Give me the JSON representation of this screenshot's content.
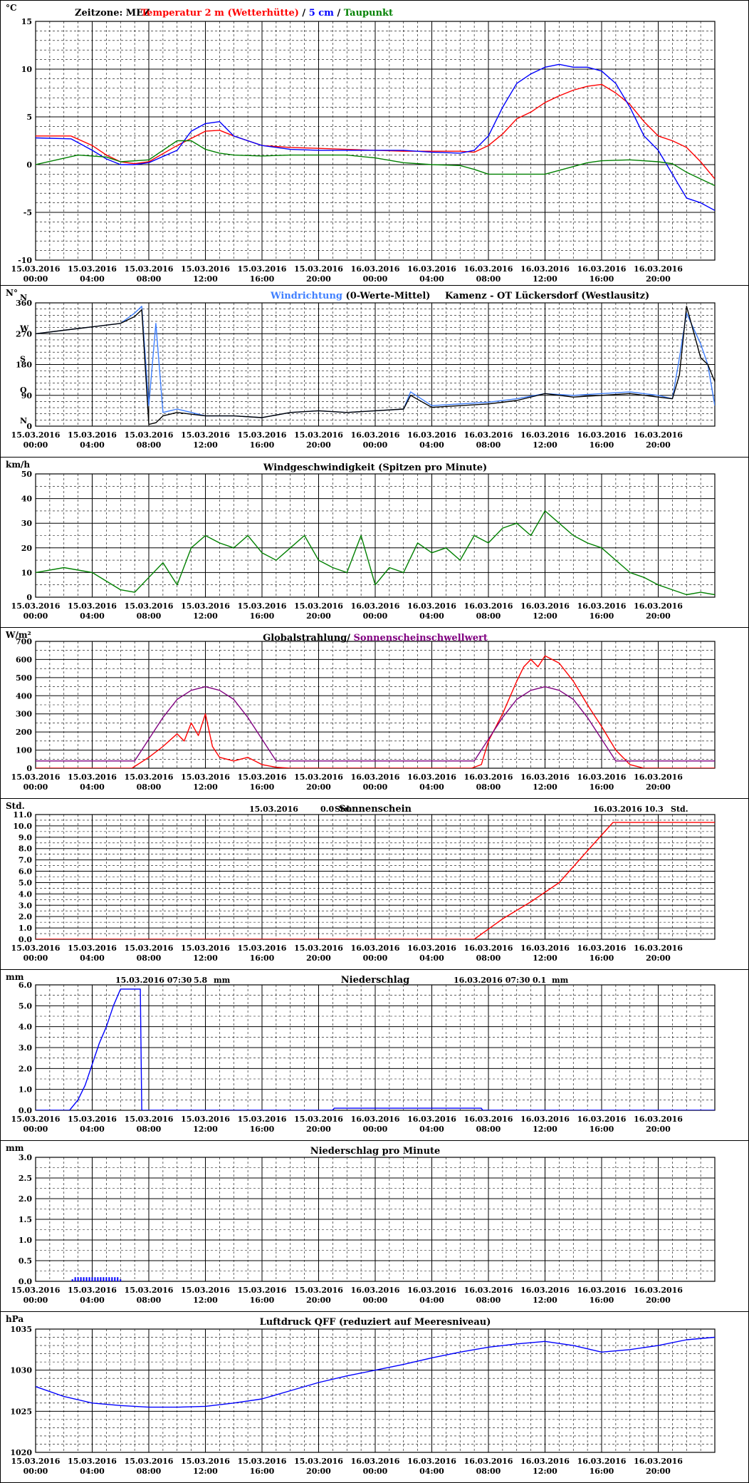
{
  "x_ticks": {
    "dates": [
      "15.03.2016",
      "15.03.2016",
      "15.03.2016",
      "15.03.2016",
      "15.03.2016",
      "15.03.2016",
      "16.03.2016",
      "16.03.2016",
      "16.03.2016",
      "16.03.2016",
      "16.03.2016",
      "16.03.2016"
    ],
    "times": [
      "00:00",
      "04:00",
      "08:00",
      "12:00",
      "16:00",
      "20:00",
      "00:00",
      "04:00",
      "08:00",
      "12:00",
      "16:00",
      "20:00"
    ]
  },
  "colors": {
    "red": "#ff0000",
    "blue": "#0000ff",
    "green": "#008000",
    "black": "#000000",
    "purple": "#800080",
    "lightblue": "#3f7fff",
    "grid": "#000000"
  },
  "chart_data": [
    {
      "type": "line",
      "id": "temperature",
      "unit": "°C",
      "header": "Zeitzone: MEZ",
      "title_parts": [
        {
          "text": "Temperatur 2 m (Wetterhütte)",
          "color": "red"
        },
        {
          "text": " / ",
          "color": "black"
        },
        {
          "text": "5 cm",
          "color": "blue"
        },
        {
          "text": " / ",
          "color": "black"
        },
        {
          "text": "Taupunkt",
          "color": "green"
        }
      ],
      "ylim": [
        -10,
        15
      ],
      "yticks": [
        -10,
        -5,
        0,
        5,
        10,
        15
      ],
      "ytick_labels": [
        "-10",
        "-5",
        "0",
        "5",
        "10",
        "15"
      ],
      "x_range_hours": [
        0,
        48
      ],
      "series": [
        {
          "name": "Temperatur 2 m (Wetterhütte)",
          "color": "red",
          "x": [
            0,
            2.5,
            4,
            5,
            6,
            7,
            8,
            10,
            12,
            13,
            14,
            16,
            18,
            20,
            22,
            24,
            26,
            28,
            30,
            31,
            32,
            33,
            34,
            35,
            36,
            37,
            38,
            39,
            40,
            41,
            42,
            43,
            44,
            45,
            46,
            47,
            48
          ],
          "y": [
            3,
            3,
            2,
            1,
            0.3,
            0.1,
            0.3,
            2,
            3.5,
            3.6,
            3,
            2,
            1.8,
            1.7,
            1.6,
            1.5,
            1.4,
            1.4,
            1.4,
            1.3,
            2,
            3.2,
            4.8,
            5.5,
            6.5,
            7.2,
            7.8,
            8.2,
            8.4,
            7.5,
            6.3,
            4.5,
            3,
            2.5,
            1.8,
            0.3,
            -1.5
          ]
        },
        {
          "name": "5 cm",
          "color": "blue",
          "x": [
            0,
            2.5,
            4,
            5,
            6,
            7,
            8,
            10,
            11,
            12,
            13,
            14,
            15,
            16,
            18,
            20,
            22,
            24,
            26,
            28,
            30,
            31,
            32,
            33,
            34,
            35,
            36,
            37,
            38,
            39,
            40,
            41,
            42,
            43,
            44,
            45,
            46,
            47,
            48
          ],
          "y": [
            2.8,
            2.7,
            1.5,
            0.6,
            0,
            0,
            0.2,
            1.5,
            3.5,
            4.3,
            4.5,
            3,
            2.5,
            2,
            1.6,
            1.5,
            1.5,
            1.5,
            1.5,
            1.3,
            1.2,
            1.5,
            3,
            6,
            8.5,
            9.5,
            10.2,
            10.5,
            10.2,
            10.2,
            9.8,
            8.5,
            6,
            3,
            1.5,
            -1,
            -3.5,
            -4,
            -4.8
          ]
        },
        {
          "name": "Taupunkt",
          "color": "green",
          "x": [
            0,
            3,
            5,
            6,
            8,
            10,
            11,
            12,
            13,
            14,
            16,
            18,
            20,
            22,
            24,
            26,
            28,
            30,
            31,
            32,
            34,
            36,
            38,
            39,
            40,
            42,
            44,
            45,
            46,
            47,
            48
          ],
          "y": [
            0,
            1,
            0.8,
            0.3,
            0.5,
            2.5,
            2.5,
            1.6,
            1.2,
            1,
            0.9,
            1,
            1,
            1,
            0.7,
            0.2,
            0,
            -0.1,
            -0.5,
            -1,
            -1,
            -1,
            -0.2,
            0.2,
            0.4,
            0.5,
            0.3,
            0.1,
            -0.8,
            -1.5,
            -2.2
          ]
        }
      ]
    },
    {
      "type": "line",
      "id": "winddir",
      "unit": "N°",
      "title_parts": [
        {
          "text": "Windrichtung",
          "color": "lightblue"
        },
        {
          "text": " (0-Werte-Mittel)",
          "color": "black"
        }
      ],
      "title_right": "Kamenz - OT Lückersdorf (Westlausitz)",
      "ylim": [
        0,
        360
      ],
      "yticks": [
        0,
        90,
        180,
        270,
        360
      ],
      "ytick_labels": [
        "0",
        "90",
        "180",
        "270",
        "360"
      ],
      "compass_labels": [
        "N",
        "O",
        "S",
        "W",
        "N"
      ],
      "series": [
        {
          "name": "Windrichtung",
          "color": "lightblue",
          "x": [
            0,
            3,
            6,
            7,
            7.5,
            8,
            8.5,
            9,
            10,
            12,
            14,
            16,
            18,
            20,
            22,
            24,
            26,
            26.5,
            28,
            30,
            32,
            34,
            36,
            38,
            40,
            42,
            44,
            45,
            45.5,
            46,
            47,
            47.5,
            48
          ],
          "y": [
            270,
            285,
            300,
            330,
            350,
            60,
            300,
            40,
            50,
            30,
            30,
            25,
            40,
            45,
            40,
            45,
            50,
            100,
            60,
            65,
            70,
            80,
            95,
            90,
            95,
            100,
            90,
            80,
            200,
            330,
            240,
            180,
            60
          ]
        },
        {
          "name": "0-Werte-Mittel",
          "color": "black",
          "x": [
            0,
            3,
            6,
            7,
            7.5,
            8,
            8.5,
            9,
            10,
            12,
            14,
            16,
            18,
            20,
            22,
            24,
            26,
            26.5,
            28,
            30,
            32,
            34,
            36,
            38,
            40,
            42,
            44,
            45,
            45.5,
            46,
            47,
            47.5,
            48
          ],
          "y": [
            270,
            285,
            300,
            320,
            340,
            5,
            10,
            30,
            40,
            30,
            30,
            25,
            40,
            45,
            40,
            45,
            50,
            90,
            55,
            60,
            65,
            75,
            95,
            85,
            90,
            95,
            85,
            80,
            150,
            350,
            200,
            180,
            130
          ]
        }
      ]
    },
    {
      "type": "line",
      "id": "windspeed",
      "unit": "km/h",
      "title_parts": [
        {
          "text": "Windgeschwindigkeit (Spitzen pro Minute)",
          "color": "black"
        }
      ],
      "ylim": [
        0,
        50
      ],
      "yticks": [
        0,
        10,
        20,
        30,
        40,
        50
      ],
      "ytick_labels": [
        "0",
        "10",
        "20",
        "30",
        "40",
        "50"
      ],
      "series": [
        {
          "name": "Windgeschwindigkeit",
          "color": "green",
          "x": [
            0,
            2,
            4,
            6,
            7,
            8,
            9,
            10,
            11,
            12,
            13,
            14,
            15,
            16,
            17,
            18,
            19,
            20,
            21,
            22,
            23,
            24,
            25,
            26,
            27,
            28,
            29,
            30,
            31,
            32,
            33,
            34,
            35,
            36,
            37,
            38,
            39,
            40,
            41,
            42,
            43,
            44,
            45,
            46,
            47,
            48
          ],
          "y": [
            10,
            12,
            10,
            3,
            2,
            8,
            14,
            5,
            20,
            25,
            22,
            20,
            25,
            18,
            15,
            20,
            25,
            15,
            12,
            10,
            25,
            5,
            12,
            10,
            22,
            18,
            20,
            15,
            25,
            22,
            28,
            30,
            25,
            35,
            30,
            25,
            22,
            20,
            15,
            10,
            8,
            5,
            3,
            1,
            2,
            1
          ]
        }
      ]
    },
    {
      "type": "line",
      "id": "radiation",
      "unit": "W/m²",
      "title_parts": [
        {
          "text": "Globalstrahlung/",
          "color": "black"
        },
        {
          "text": " Sonnenscheinschwellwert",
          "color": "purple"
        }
      ],
      "ylim": [
        0,
        700
      ],
      "yticks": [
        0,
        100,
        200,
        300,
        400,
        500,
        600,
        700
      ],
      "ytick_labels": [
        "0",
        "100",
        "200",
        "300",
        "400",
        "500",
        "600",
        "700"
      ],
      "series": [
        {
          "name": "Globalstrahlung",
          "color": "red",
          "x": [
            0,
            6.8,
            7,
            8,
            9,
            10,
            10.5,
            11,
            11.5,
            12,
            12.5,
            13,
            14,
            15,
            16,
            17,
            18,
            24,
            30.8,
            31.5,
            32,
            33,
            34,
            34.5,
            35,
            35.5,
            36,
            37,
            38,
            39,
            40,
            41,
            42,
            43,
            48
          ],
          "y": [
            0,
            0,
            10,
            60,
            120,
            190,
            150,
            250,
            180,
            300,
            120,
            60,
            40,
            60,
            20,
            5,
            0,
            0,
            0,
            20,
            150,
            300,
            480,
            560,
            600,
            560,
            620,
            580,
            480,
            350,
            230,
            100,
            20,
            0,
            0
          ]
        },
        {
          "name": "Sonnenscheinschwellwert",
          "color": "purple",
          "x": [
            0,
            7,
            8,
            9,
            10,
            11,
            12,
            13,
            14,
            15,
            16,
            17,
            31,
            32,
            33,
            34,
            35,
            36,
            37,
            38,
            39,
            40,
            41,
            48
          ],
          "y": [
            40,
            40,
            160,
            280,
            380,
            430,
            450,
            430,
            380,
            280,
            160,
            40,
            40,
            160,
            280,
            380,
            430,
            450,
            430,
            380,
            280,
            160,
            40,
            40
          ]
        }
      ]
    },
    {
      "type": "line",
      "id": "sunshine",
      "unit": "Std.",
      "title_parts": [
        {
          "text": "Sonnenschein",
          "color": "black"
        }
      ],
      "annotations": [
        {
          "date": "15.03.2016",
          "value": "0.0",
          "unit": "Std."
        },
        {
          "date": "16.03.2016",
          "value": "10.3",
          "unit": "Std."
        }
      ],
      "ylim": [
        0,
        11
      ],
      "yticks": [
        0,
        1,
        2,
        3,
        4,
        5,
        6,
        7,
        8,
        9,
        10,
        11
      ],
      "ytick_labels": [
        "0.0",
        "1.0",
        "2.0",
        "3.0",
        "4.0",
        "5.0",
        "6.0",
        "7.0",
        "8.0",
        "9.0",
        "10.0",
        "11.0"
      ],
      "series": [
        {
          "name": "Sonnenschein",
          "color": "red",
          "x": [
            0,
            31,
            33,
            35,
            37,
            39,
            40.8,
            48
          ],
          "y": [
            0,
            0,
            1.8,
            3.3,
            5,
            7.8,
            10.3,
            10.3
          ]
        }
      ]
    },
    {
      "type": "line",
      "id": "precip",
      "unit": "mm",
      "title_parts": [
        {
          "text": "Niederschlag",
          "color": "black"
        }
      ],
      "annotations": [
        {
          "date": "15.03.2016 07:30",
          "value": "5.8",
          "unit": "mm"
        },
        {
          "date": "16.03.2016 07:30",
          "value": "0.1",
          "unit": "mm"
        }
      ],
      "ylim": [
        0,
        6
      ],
      "yticks": [
        0,
        1,
        2,
        3,
        4,
        5,
        6
      ],
      "ytick_labels": [
        "0.0",
        "1.0",
        "2.0",
        "3.0",
        "4.0",
        "5.0",
        "6.0"
      ],
      "series": [
        {
          "name": "Niederschlag",
          "color": "blue",
          "x": [
            0,
            2.4,
            3,
            3.5,
            4,
            4.5,
            5,
            5.5,
            6,
            7.3,
            7.4,
            7.5,
            21,
            21.1,
            31.5,
            31.6,
            48
          ],
          "y": [
            0,
            0,
            0.5,
            1.2,
            2.2,
            3.2,
            4,
            5,
            5.8,
            5.8,
            5.8,
            0,
            0,
            0.1,
            0.1,
            0,
            0
          ]
        }
      ]
    },
    {
      "type": "bar",
      "id": "precip_min",
      "unit": "mm",
      "title_parts": [
        {
          "text": "Niederschlag pro Minute",
          "color": "black"
        }
      ],
      "ylim": [
        0,
        3
      ],
      "yticks": [
        0,
        0.5,
        1,
        1.5,
        2,
        2.5,
        3
      ],
      "ytick_labels": [
        "0.0",
        "0.5",
        "1.0",
        "1.5",
        "2.0",
        "2.5",
        "3.0"
      ],
      "series": [
        {
          "name": "Niederschlag pro Minute",
          "color": "blue",
          "x": [
            2.6,
            2.8,
            3,
            3.2,
            3.4,
            3.6,
            3.8,
            4,
            4.2,
            4.4,
            4.6,
            4.8,
            5,
            5.2,
            5.4,
            5.6,
            5.8,
            6
          ],
          "y": [
            0.05,
            0.1,
            0.1,
            0.1,
            0.1,
            0.1,
            0.1,
            0.1,
            0.1,
            0.1,
            0.1,
            0.1,
            0.1,
            0.1,
            0.1,
            0.1,
            0.1,
            0.05
          ]
        }
      ]
    },
    {
      "type": "line",
      "id": "pressure",
      "unit": "hPa",
      "title_parts": [
        {
          "text": "Luftdruck QFF (reduziert auf Meeresniveau)",
          "color": "black"
        }
      ],
      "ylim": [
        1020,
        1035
      ],
      "yticks": [
        1020,
        1025,
        1030,
        1035
      ],
      "ytick_labels": [
        "1020",
        "1025",
        "1030",
        "1035"
      ],
      "series": [
        {
          "name": "Luftdruck",
          "color": "blue",
          "x": [
            0,
            2,
            4,
            6,
            8,
            10,
            12,
            14,
            16,
            18,
            20,
            22,
            24,
            26,
            28,
            30,
            32,
            34,
            36,
            38,
            40,
            42,
            44,
            46,
            48
          ],
          "y": [
            1028,
            1026.8,
            1026,
            1025.7,
            1025.5,
            1025.5,
            1025.6,
            1026,
            1026.5,
            1027.5,
            1028.5,
            1029.3,
            1030,
            1030.7,
            1031.5,
            1032.2,
            1032.8,
            1033.2,
            1033.5,
            1033,
            1032.2,
            1032.5,
            1033,
            1033.7,
            1034
          ]
        }
      ]
    }
  ]
}
